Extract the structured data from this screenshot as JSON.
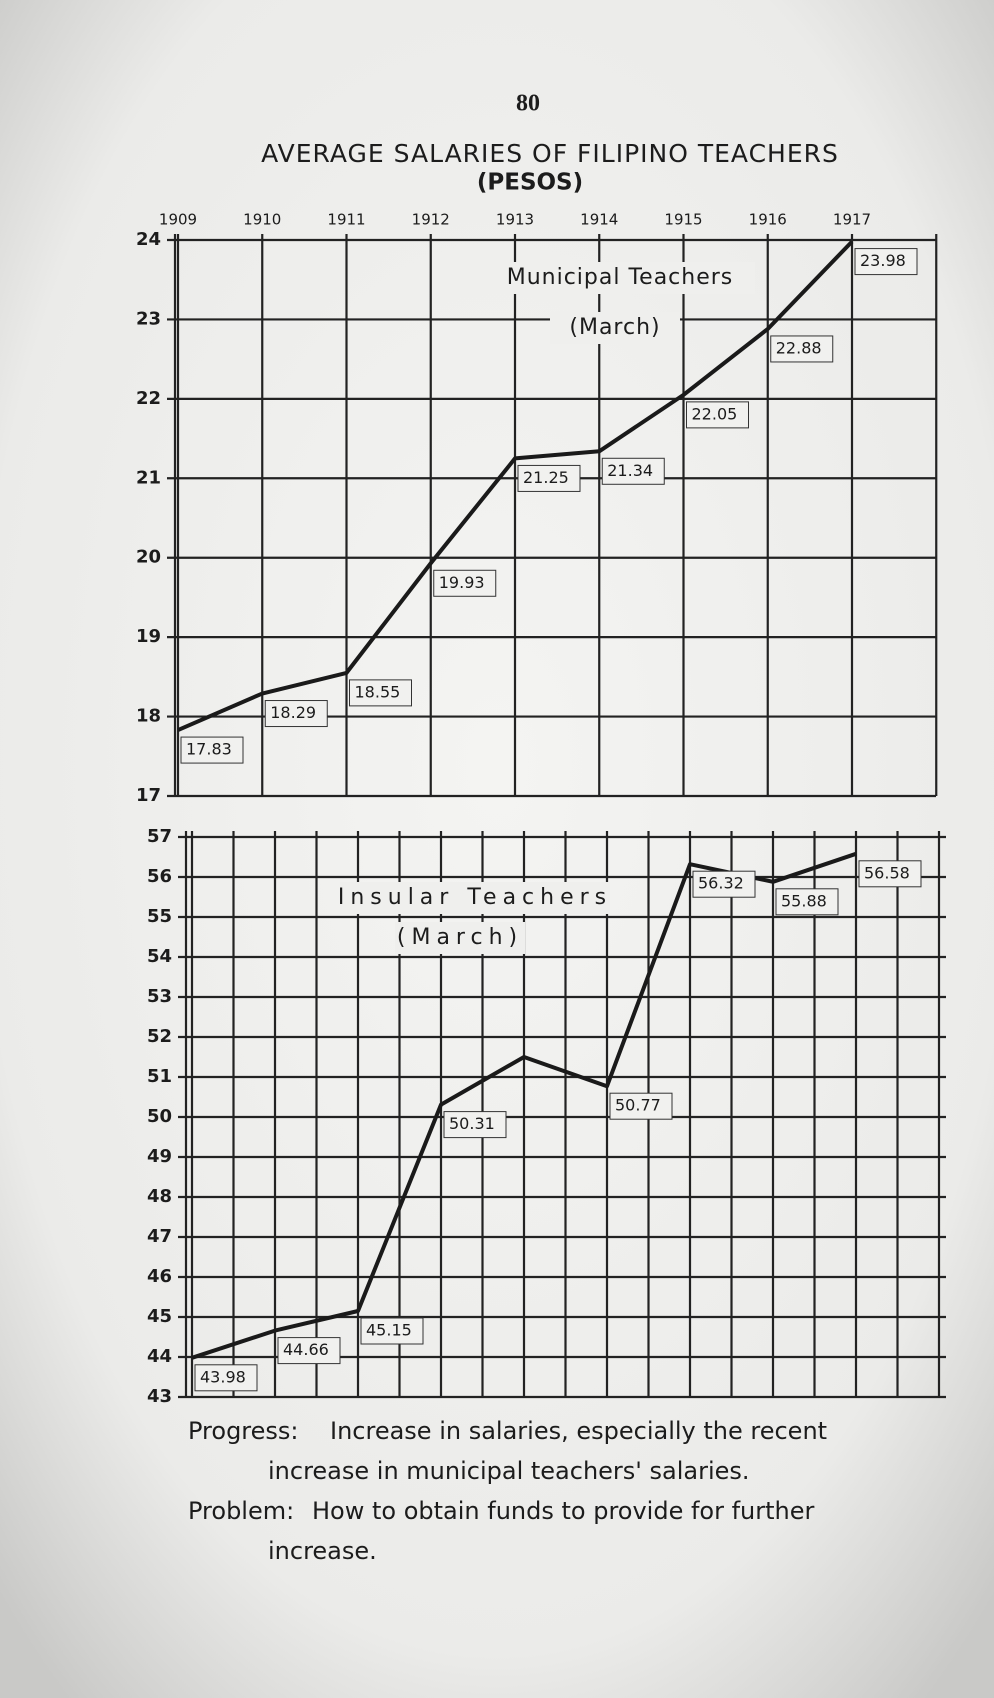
{
  "page": {
    "number": "80",
    "title": "AVERAGE SALARIES OF FILIPINO TEACHERS",
    "subtitle": "(PESOS)"
  },
  "chart_data": [
    {
      "type": "line",
      "categories": [
        "1909",
        "1910",
        "1911",
        "1912",
        "1913",
        "1914",
        "1915",
        "1916",
        "1917"
      ],
      "series": [
        {
          "name": "Municipal Teachers",
          "color": "#1a1a1a",
          "values": [
            17.83,
            18.29,
            18.55,
            19.93,
            21.25,
            21.34,
            22.05,
            22.88,
            23.98
          ]
        }
      ],
      "annotations": [
        "(March)"
      ],
      "ylim": [
        17,
        24
      ],
      "yticks": [
        17,
        18,
        19,
        20,
        21,
        22,
        23,
        24
      ],
      "grid": true
    },
    {
      "type": "line",
      "series": [
        {
          "name": "Insular Teachers",
          "color": "#1a1a1a",
          "values": [
            43.98,
            44.66,
            45.15,
            50.31,
            51.5,
            50.77,
            56.32,
            55.88,
            56.58
          ],
          "value_labels": [
            "43.98",
            "44.66",
            "45.15",
            "50.31",
            null,
            "50.77",
            "56.32",
            "55.88",
            "56.58"
          ]
        }
      ],
      "annotations": [
        "(March)"
      ],
      "ylim": [
        43,
        57
      ],
      "yticks": [
        43,
        44,
        45,
        46,
        47,
        48,
        49,
        50,
        51,
        52,
        53,
        54,
        55,
        56,
        57
      ],
      "grid": true
    }
  ],
  "notes": [
    {
      "label": "Progress:",
      "lines": [
        "Increase in salaries, especially the recent",
        "increase in municipal teachers' salaries."
      ]
    },
    {
      "label": "Problem:",
      "lines": [
        "How to obtain funds to provide for further",
        "increase."
      ]
    }
  ]
}
